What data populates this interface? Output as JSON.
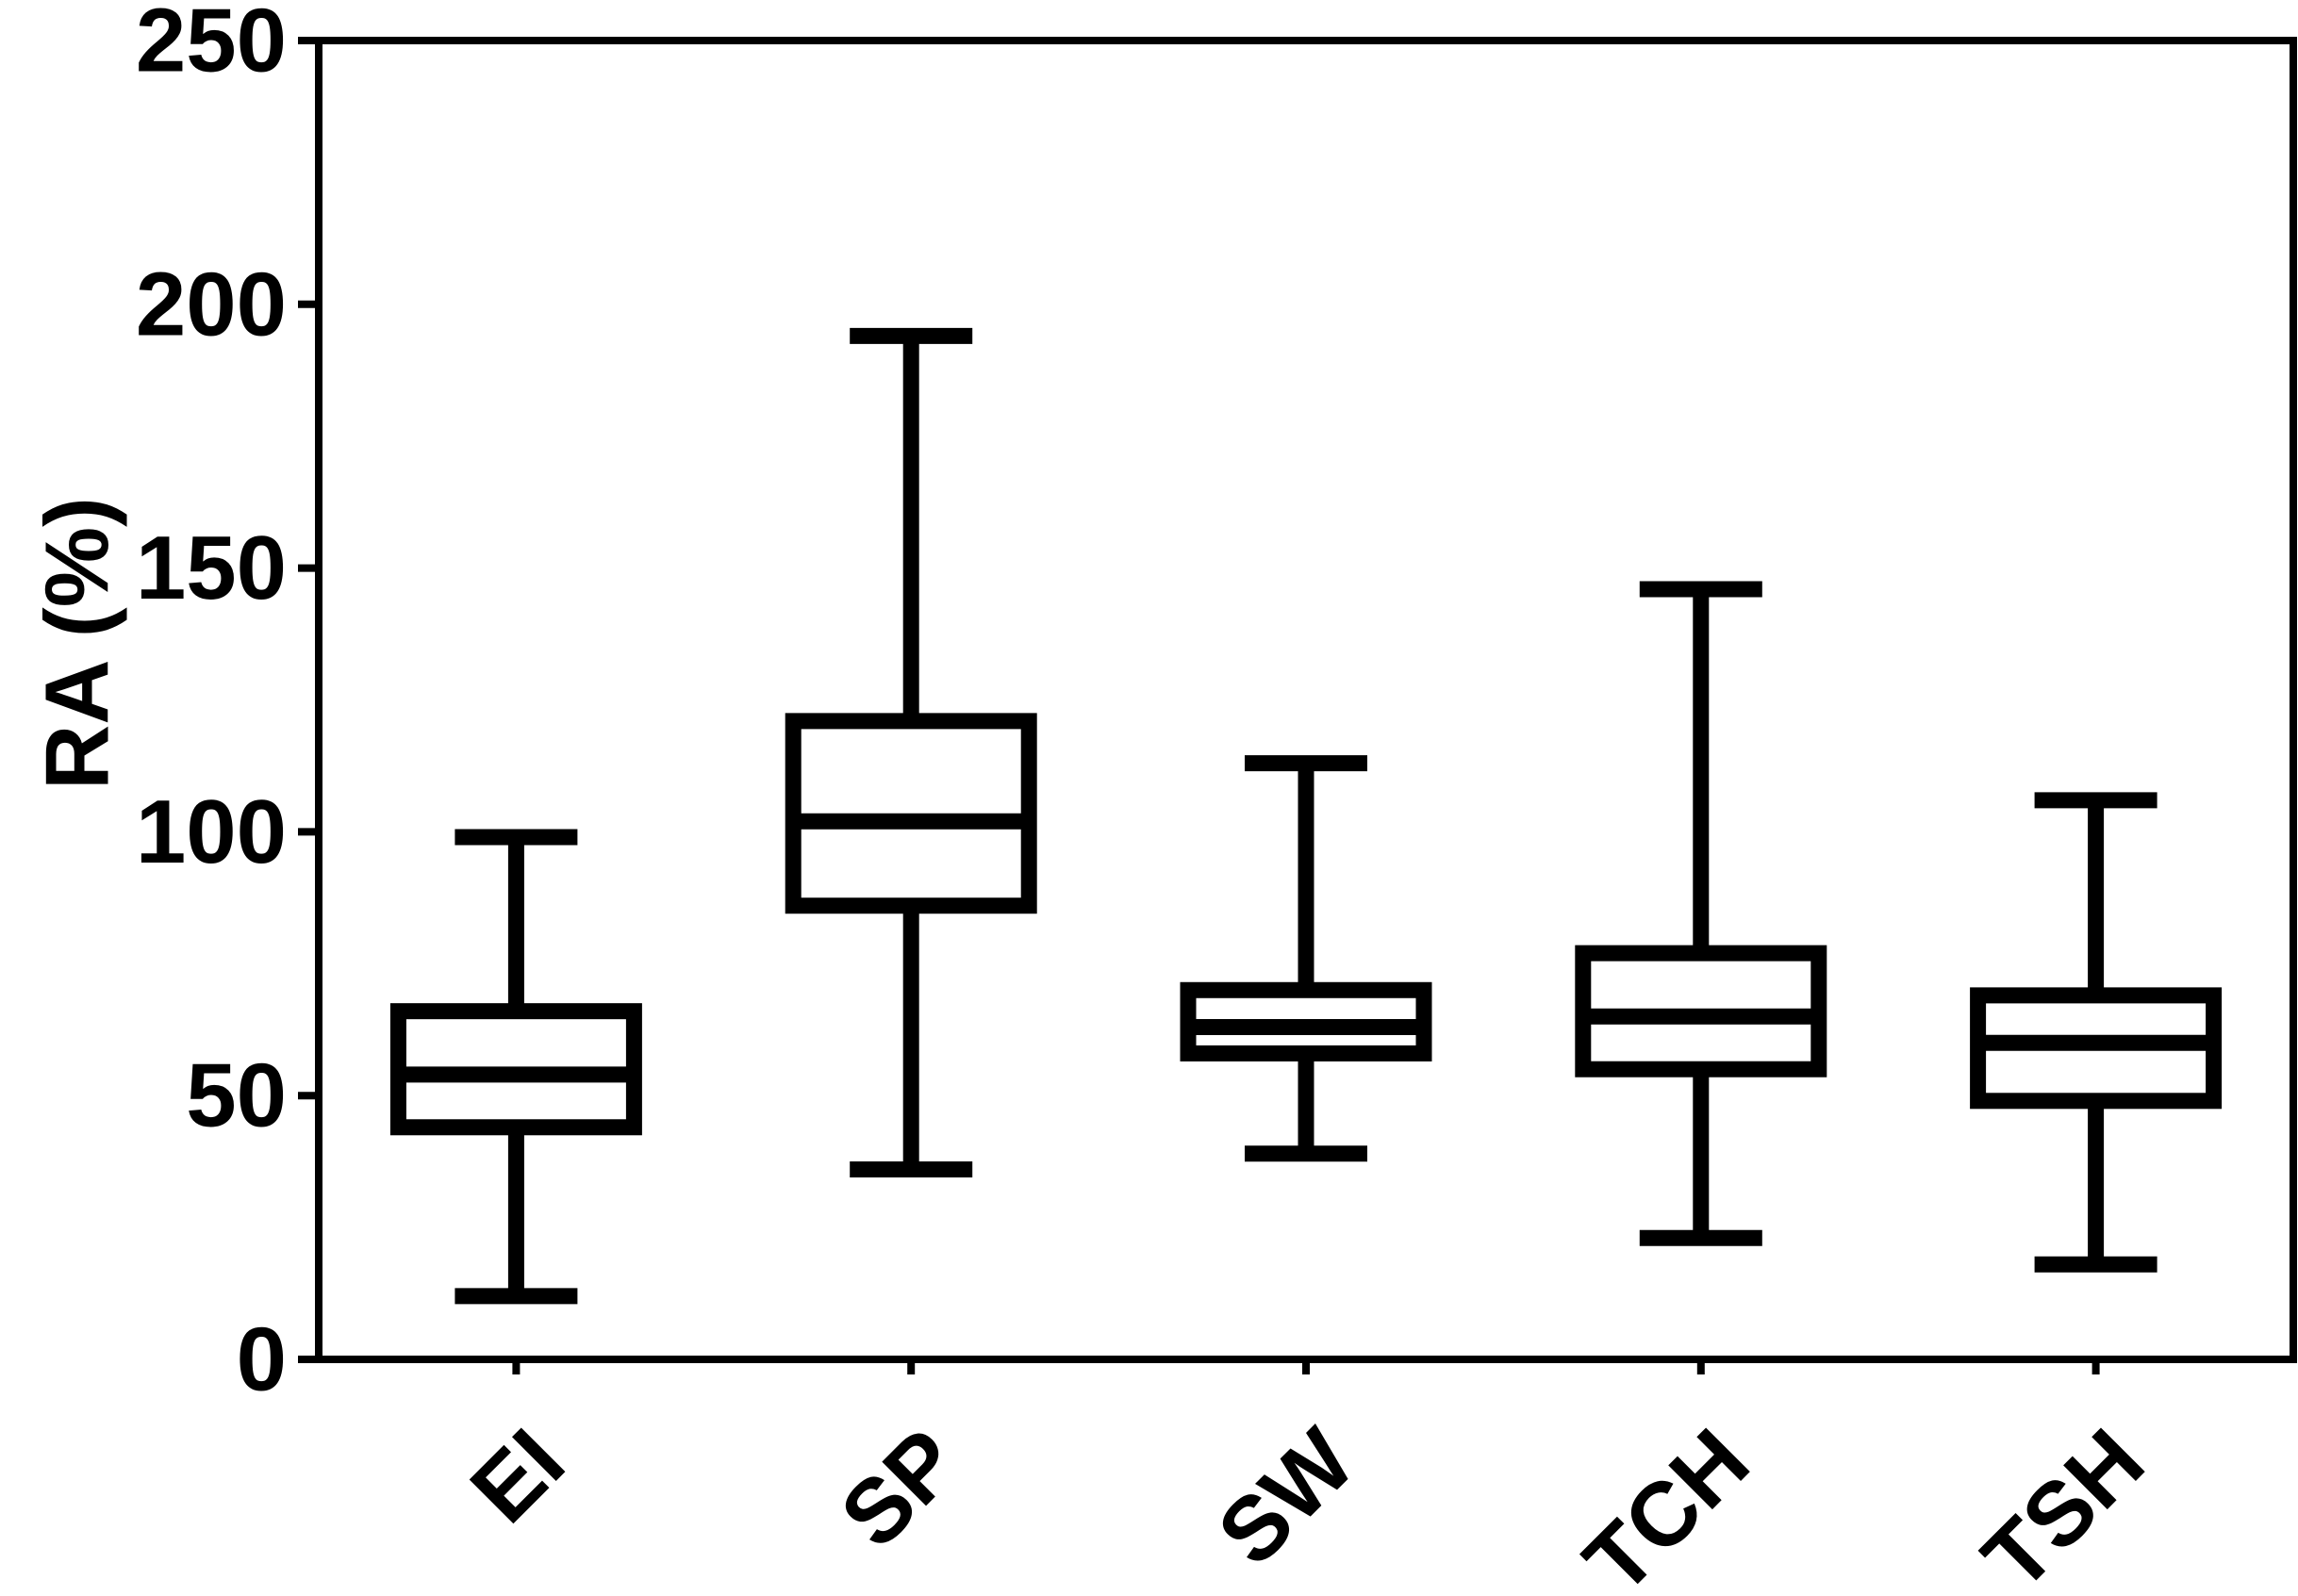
{
  "chart_data": {
    "type": "box",
    "title": "",
    "xlabel": "",
    "ylabel": "RA (%)",
    "ylim": [
      0,
      250
    ],
    "yticks": [
      0,
      50,
      100,
      150,
      200,
      250
    ],
    "grid": false,
    "legend": "none",
    "categories": [
      "EI",
      "SP",
      "SW",
      "TCH",
      "TSH"
    ],
    "boxes": [
      {
        "category": "EI",
        "min": 12,
        "q1": 44,
        "median": 54,
        "q3": 66,
        "max": 99
      },
      {
        "category": "SP",
        "min": 36,
        "q1": 86,
        "median": 102,
        "q3": 121,
        "max": 194
      },
      {
        "category": "SW",
        "min": 39,
        "q1": 58,
        "median": 63,
        "q3": 70,
        "max": 113
      },
      {
        "category": "TCH",
        "min": 23,
        "q1": 55,
        "median": 65,
        "q3": 77,
        "max": 146
      },
      {
        "category": "TSH",
        "min": 18,
        "q1": 49,
        "median": 60,
        "q3": 69,
        "max": 106
      }
    ],
    "colors": {
      "stroke": "#000000",
      "fill": "#ffffff"
    }
  }
}
